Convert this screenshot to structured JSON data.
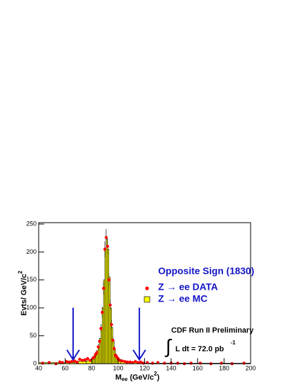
{
  "chart_data": {
    "type": "histogram",
    "y_label": [
      "Evts/ GeV/c",
      "2"
    ],
    "x_label": [
      "M",
      "ee",
      " (GeV/c",
      "2",
      ")"
    ],
    "legend_title": "Opposite Sign (1830)",
    "annotation": "CDF Run II Preliminary",
    "lumi": [
      "∫",
      "L dt = 72.0 pb",
      "-1"
    ],
    "xlim": [
      40,
      200
    ],
    "ylim": [
      0,
      250
    ],
    "xticks": [
      40,
      60,
      80,
      100,
      120,
      140,
      160,
      180,
      200
    ],
    "yticks": [
      0,
      50,
      100,
      150,
      200,
      250
    ],
    "cut_arrows": [
      66,
      116
    ],
    "mc": {
      "name": "Z → ee  MC",
      "color": "#ffff00",
      "bins": [
        40,
        70,
        76,
        80,
        81,
        82,
        83,
        84,
        85,
        86,
        87,
        88,
        89,
        90,
        91,
        92,
        93,
        94,
        95,
        96,
        97,
        98,
        99,
        100,
        102,
        106,
        120,
        200
      ],
      "values": [
        2,
        4,
        5,
        8,
        10,
        14,
        17,
        24,
        32,
        45,
        65,
        100,
        150,
        205,
        222,
        205,
        155,
        100,
        65,
        40,
        25,
        17,
        12,
        8,
        5,
        3,
        1
      ]
    },
    "data": {
      "name": "Z → ee DATA",
      "color": "#ff0000",
      "x": [
        43,
        48,
        53,
        56,
        58,
        61,
        63,
        65,
        67,
        69,
        71,
        73,
        75,
        77,
        79,
        81,
        82,
        83,
        84,
        85,
        86,
        87,
        88,
        89,
        90,
        91,
        92,
        93,
        94,
        95,
        96,
        97,
        98,
        99,
        100,
        101,
        103,
        105,
        107,
        109,
        111,
        113,
        115,
        117,
        119,
        122,
        126,
        130,
        135,
        140,
        145,
        150,
        155,
        162,
        170,
        178,
        186,
        195
      ],
      "values": [
        1,
        2,
        0,
        3,
        2,
        4,
        3,
        4,
        5,
        3,
        8,
        6,
        7,
        9,
        6,
        10,
        12,
        17,
        20,
        30,
        40,
        63,
        92,
        135,
        205,
        226,
        210,
        150,
        105,
        70,
        42,
        27,
        15,
        12,
        9,
        6,
        5,
        4,
        3,
        3,
        2,
        4,
        2,
        3,
        1,
        2,
        1,
        2,
        1,
        1,
        1,
        0,
        1,
        1,
        0,
        1,
        0,
        1
      ],
      "errors": [
        1,
        1.4,
        1,
        1.7,
        1.4,
        2,
        1.7,
        2,
        2.2,
        1.7,
        2.8,
        2.4,
        2.6,
        3,
        2.4,
        3.2,
        3.5,
        4.1,
        4.5,
        5.5,
        6.3,
        7.9,
        9.6,
        11.6,
        14.3,
        15,
        14.5,
        12.2,
        10.2,
        8.4,
        6.5,
        5.2,
        3.9,
        3.5,
        3,
        2.4,
        2.2,
        2,
        1.7,
        1.7,
        1.4,
        2,
        1.4,
        1.7,
        1,
        1.4,
        1,
        1.4,
        1,
        1,
        1,
        1,
        1,
        1,
        1,
        1,
        1,
        1
      ]
    }
  }
}
